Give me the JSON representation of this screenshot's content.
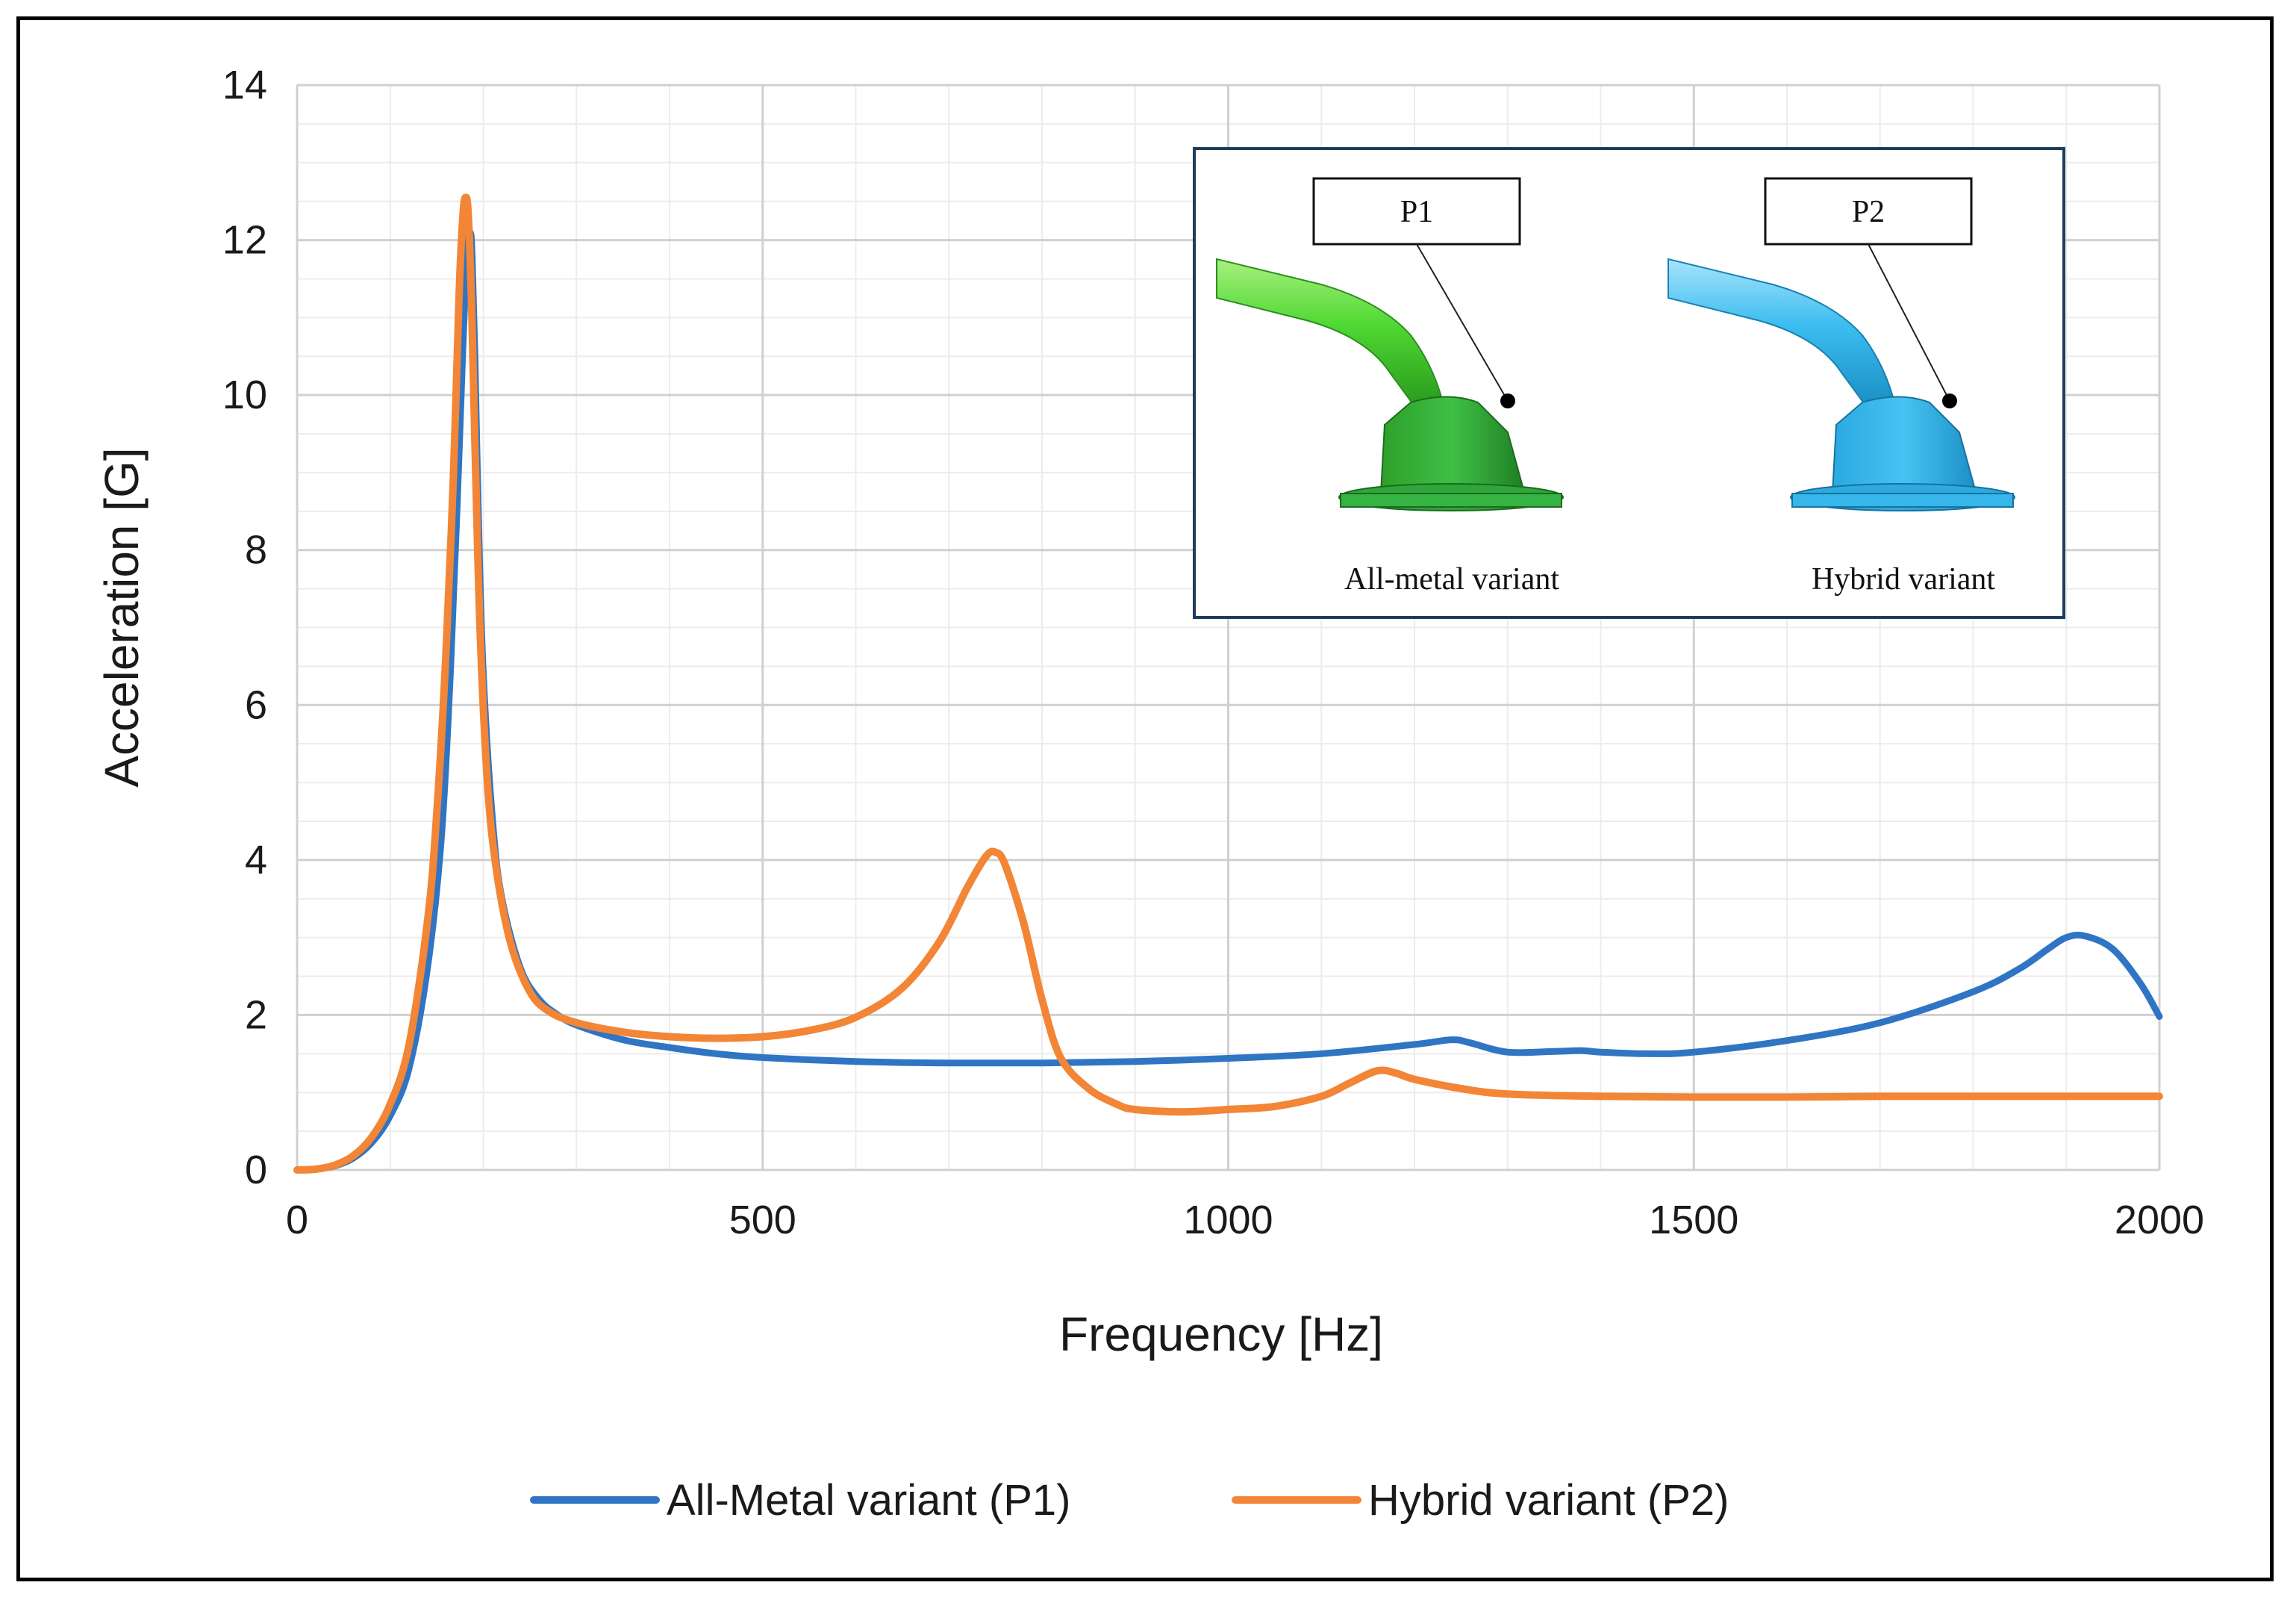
{
  "colors": {
    "series1": "#2f75c4",
    "series2": "#f28536",
    "grid_major": "#d0d0d0",
    "grid_minor": "#ececec",
    "inset_border": "#1f3d5c",
    "metal_green": "#39c42e",
    "hybrid_blue": "#2fb4ea"
  },
  "chart_data": {
    "type": "line",
    "title": "",
    "xlabel": "Frequency [Hz]",
    "ylabel": "Acceleration [G]",
    "xlim": [
      0,
      2000
    ],
    "ylim": [
      0,
      14
    ],
    "xticks": [
      0,
      500,
      1000,
      1500,
      2000
    ],
    "yticks": [
      0,
      2,
      4,
      6,
      8,
      10,
      12,
      14
    ],
    "grid": true,
    "legend_position": "bottom",
    "series": [
      {
        "name": "All-Metal variant (P1)",
        "x": [
          0,
          20,
          40,
          60,
          80,
          100,
          120,
          140,
          155,
          165,
          172,
          178,
          183,
          186,
          188,
          191,
          195,
          200,
          210,
          220,
          240,
          260,
          280,
          300,
          350,
          400,
          450,
          500,
          600,
          700,
          800,
          900,
          1000,
          1100,
          1200,
          1240,
          1260,
          1300,
          1350,
          1380,
          1400,
          1450,
          1500,
          1600,
          1700,
          1800,
          1850,
          1880,
          1900,
          1920,
          1950,
          1980,
          2000
        ],
        "values": [
          0.0,
          0.01,
          0.05,
          0.15,
          0.35,
          0.7,
          1.3,
          2.6,
          4.3,
          6.5,
          8.6,
          10.6,
          11.9,
          12.1,
          11.8,
          10.5,
          8.3,
          6.4,
          4.5,
          3.5,
          2.6,
          2.2,
          2.0,
          1.87,
          1.68,
          1.58,
          1.5,
          1.45,
          1.4,
          1.38,
          1.38,
          1.4,
          1.44,
          1.5,
          1.62,
          1.68,
          1.64,
          1.52,
          1.53,
          1.54,
          1.52,
          1.5,
          1.52,
          1.67,
          1.9,
          2.3,
          2.6,
          2.85,
          3.0,
          3.02,
          2.85,
          2.4,
          1.98
        ]
      },
      {
        "name": "Hybrid variant (P2)",
        "x": [
          0,
          20,
          40,
          60,
          80,
          100,
          120,
          140,
          150,
          160,
          168,
          174,
          178,
          181,
          184,
          188,
          192,
          197,
          205,
          215,
          230,
          250,
          270,
          300,
          350,
          400,
          450,
          500,
          550,
          600,
          650,
          690,
          720,
          740,
          750,
          760,
          780,
          800,
          820,
          850,
          880,
          900,
          950,
          1000,
          1050,
          1100,
          1130,
          1160,
          1180,
          1200,
          1250,
          1300,
          1400,
          1500,
          1600,
          1700,
          1800,
          1900,
          2000
        ],
        "values": [
          0.0,
          0.01,
          0.06,
          0.18,
          0.42,
          0.85,
          1.6,
          3.2,
          4.6,
          6.7,
          9.0,
          11.3,
          12.3,
          12.55,
          12.3,
          10.9,
          8.9,
          6.8,
          4.9,
          3.8,
          2.9,
          2.3,
          2.05,
          1.9,
          1.78,
          1.72,
          1.7,
          1.72,
          1.8,
          1.97,
          2.35,
          2.95,
          3.65,
          4.05,
          4.1,
          3.95,
          3.2,
          2.2,
          1.45,
          1.05,
          0.85,
          0.78,
          0.75,
          0.78,
          0.82,
          0.95,
          1.12,
          1.28,
          1.25,
          1.17,
          1.05,
          0.98,
          0.95,
          0.94,
          0.94,
          0.95,
          0.95,
          0.95,
          0.95
        ]
      }
    ]
  },
  "inset": {
    "label_p1": "P1",
    "label_p2": "P2",
    "caption_left": "All-metal variant",
    "caption_right": "Hybrid variant"
  }
}
